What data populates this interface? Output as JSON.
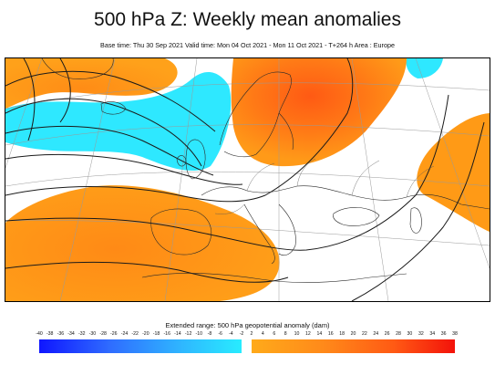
{
  "header": {
    "title": "500 hPa Z: Weekly mean anomalies",
    "subtitle": "Base time: Thu 30 Sep 2021 Valid time: Mon 04 Oct 2021 - Mon 11 Oct 2021 - T+264 h Area : Europe"
  },
  "legend": {
    "title": "Extended range: 500 hPa geopotential anomaly (dam)",
    "negative_labels": [
      "-40",
      "-38",
      "-36",
      "-34",
      "-32",
      "-30",
      "-28",
      "-26",
      "-24",
      "-22",
      "-20",
      "-18",
      "-16",
      "-14",
      "-12",
      "-10",
      "-8",
      "-6",
      "-4",
      "-2"
    ],
    "positive_labels": [
      "2",
      "4",
      "6",
      "8",
      "10",
      "12",
      "14",
      "16",
      "18",
      "20",
      "22",
      "24",
      "26",
      "28",
      "30",
      "32",
      "34",
      "36",
      "38"
    ],
    "colors": {
      "negative_dark": "#0f16ff",
      "negative_light": "#28ecff",
      "positive_light": "#ffaa1a",
      "positive_dark": "#f3120a"
    }
  },
  "map": {
    "area": "Europe",
    "anomaly_colors": {
      "positive": "#ff9a16",
      "positive_core": "#ff6a16",
      "negative": "#2ee6ff"
    }
  }
}
